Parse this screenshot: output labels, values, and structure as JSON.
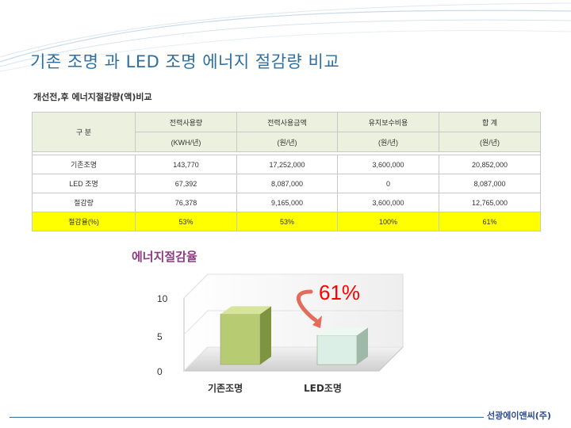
{
  "slide": {
    "title": "기존 조명 과 LED 조명 에너지 절감량 비교",
    "section_heading": "개선전,후 에너지절감량(액)비교",
    "company": "선광에이앤씨(주)"
  },
  "table": {
    "corner_label": "구    분",
    "columns": [
      {
        "name": "전력사용량",
        "unit": "(KWH/년)"
      },
      {
        "name": "전력사용금액",
        "unit": "(원/년)"
      },
      {
        "name": "유지보수비용",
        "unit": "(원/년)"
      },
      {
        "name": "합   계",
        "unit": "(원/년)"
      }
    ],
    "rows": [
      {
        "label": "기존조명",
        "values": [
          "143,770",
          "17,252,000",
          "3,600,000",
          "20,852,000"
        ]
      },
      {
        "label": "LED 조명",
        "values": [
          "67,392",
          "8,087,000",
          "0",
          "8,087,000"
        ]
      },
      {
        "label": "절감량",
        "values": [
          "76,378",
          "9,165,000",
          "3,600,000",
          "12,765,000"
        ]
      },
      {
        "label": "절감율(%)",
        "values": [
          "53%",
          "53%",
          "100%",
          "61%"
        ]
      }
    ]
  },
  "chart_data": {
    "type": "bar",
    "title": "에너지절감율",
    "categories": [
      "기존조명",
      "LED조명"
    ],
    "values": [
      8,
      4
    ],
    "ylim": [
      0,
      10
    ],
    "yticks": [
      "0",
      "5",
      "10"
    ],
    "annotation": "61%",
    "colors": {
      "bar1": "#b7cc72",
      "bar2": "#dcefe6",
      "annotation": "#ff0000"
    }
  }
}
